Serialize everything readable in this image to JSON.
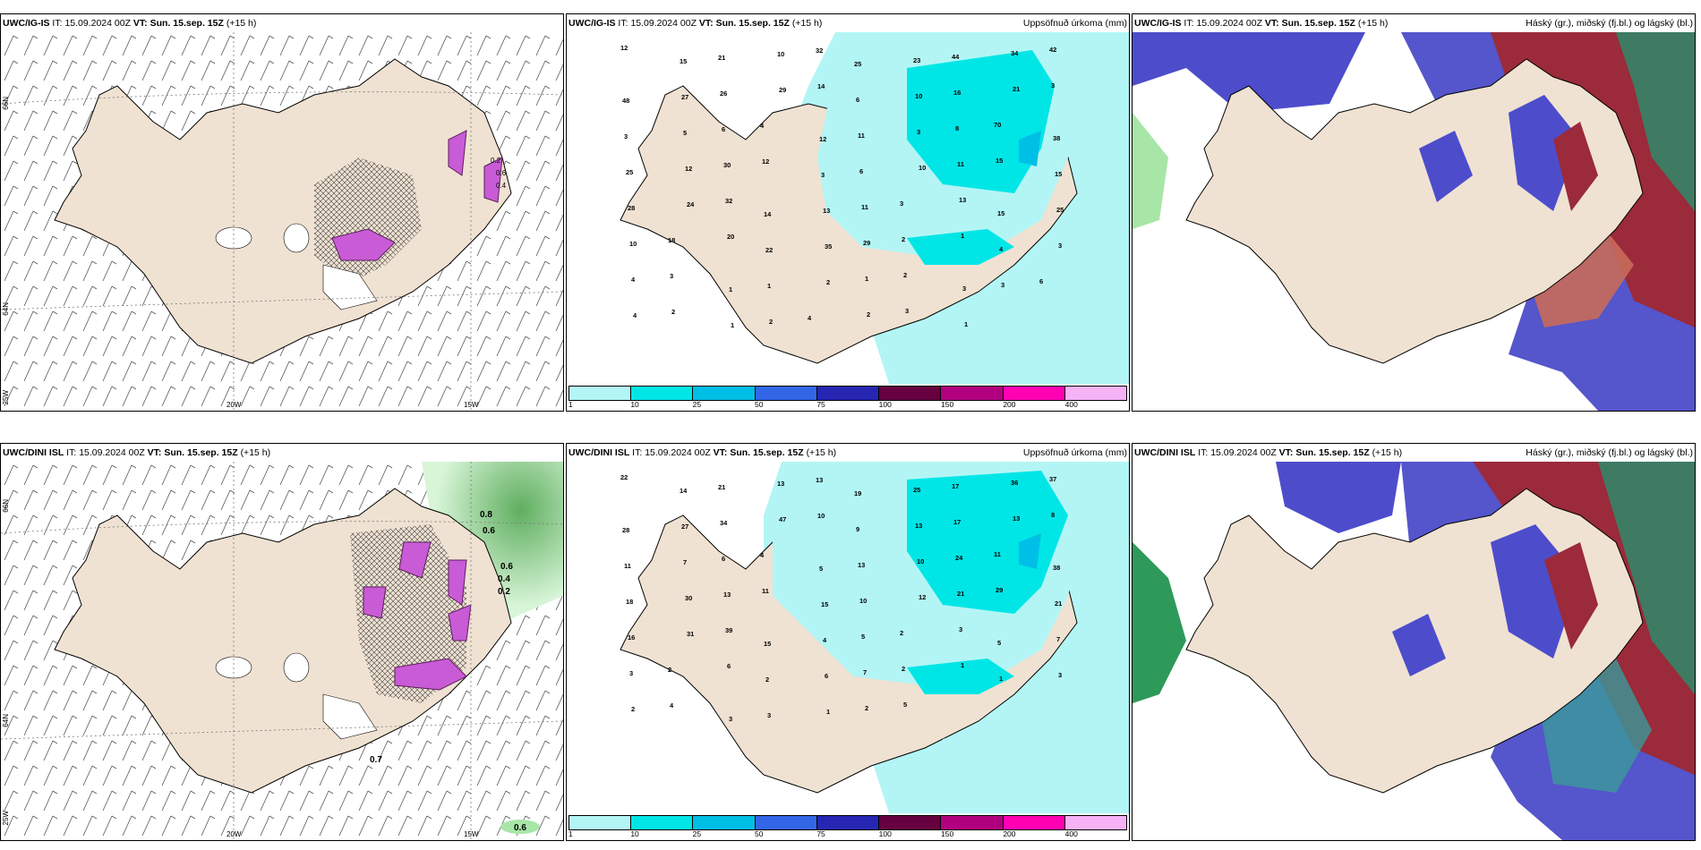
{
  "panels": [
    {
      "model": "UWC/IG-IS",
      "it_label": "IT:",
      "init": "15.09.2024 00Z",
      "vt_label": "VT:",
      "valid": "Sun. 15.sep. 15Z",
      "lead": "(+15 h)",
      "right": ""
    },
    {
      "model": "UWC/IG-IS",
      "it_label": "IT:",
      "init": "15.09.2024 00Z",
      "vt_label": "VT:",
      "valid": "Sun. 15.sep. 15Z",
      "lead": "(+15 h)",
      "right": "Uppsöfnuð úrkoma (mm)"
    },
    {
      "model": "UWC/IG-IS",
      "it_label": "IT:",
      "init": "15.09.2024 00Z",
      "vt_label": "VT:",
      "valid": "Sun. 15.sep. 15Z",
      "lead": "(+15 h)",
      "right": "Háský (gr.), miðský (fj.bl.) og lágský (bl.)"
    },
    {
      "model": "UWC/DINI ISL",
      "it_label": "IT:",
      "init": "15.09.2024 00Z",
      "vt_label": "VT:",
      "valid": "Sun. 15.sep. 15Z",
      "lead": "(+15 h)",
      "right": ""
    },
    {
      "model": "UWC/DINI ISL",
      "it_label": "IT:",
      "init": "15.09.2024 00Z",
      "vt_label": "VT:",
      "valid": "Sun. 15.sep. 15Z",
      "lead": "(+15 h)",
      "right": "Uppsöfnuð úrkoma (mm)"
    },
    {
      "model": "UWC/DINI ISL",
      "it_label": "IT:",
      "init": "15.09.2024 00Z",
      "vt_label": "VT:",
      "valid": "Sun. 15.sep. 15Z",
      "lead": "(+15 h)",
      "right": "Háský (gr.), miðský (fj.bl.) og lágský (bl.)"
    }
  ],
  "axes": {
    "lat66": "66N",
    "lat64": "64N",
    "lon20": "20W",
    "lon15": "15W",
    "lon25": "25W"
  },
  "legend": {
    "labels": [
      "1",
      "10",
      "25",
      "50",
      "75",
      "100",
      "150",
      "200",
      "400"
    ],
    "colors": [
      "#b3f5f5",
      "#00e6e6",
      "#00bfe6",
      "#3366e6",
      "#2626b3",
      "#660040",
      "#b30080",
      "#ff00b3",
      "#f5b3f5"
    ]
  },
  "precip_ig": [
    "12",
    "15",
    "21",
    "10",
    "32",
    "25",
    "23",
    "44",
    "34",
    "42",
    "48",
    "27",
    "26",
    "29",
    "14",
    "6",
    "10",
    "16",
    "21",
    "3",
    "3",
    "5",
    "6",
    "4",
    "12",
    "11",
    "3",
    "8",
    "70",
    "38",
    "25",
    "12",
    "30",
    "12",
    "3",
    "6",
    "10",
    "11",
    "15",
    "15",
    "28",
    "24",
    "32",
    "14",
    "13",
    "11",
    "3",
    "13",
    "15",
    "25",
    "10",
    "18",
    "20",
    "22",
    "35",
    "29",
    "2",
    "1",
    "4",
    "3",
    "4",
    "3",
    "1",
    "1",
    "2",
    "1",
    "2",
    "3",
    "3",
    "6",
    "4",
    "2",
    "1",
    "2",
    "4",
    "2",
    "3",
    "1"
  ],
  "precip_dini": [
    "22",
    "14",
    "21",
    "13",
    "13",
    "19",
    "25",
    "17",
    "36",
    "37",
    "28",
    "27",
    "34",
    "47",
    "10",
    "9",
    "13",
    "17",
    "13",
    "8",
    "11",
    "7",
    "6",
    "4",
    "5",
    "13",
    "10",
    "24",
    "11",
    "38",
    "18",
    "30",
    "13",
    "11",
    "15",
    "10",
    "12",
    "21",
    "29",
    "21",
    "16",
    "31",
    "39",
    "15",
    "4",
    "5",
    "2",
    "3",
    "5",
    "7",
    "3",
    "2",
    "6",
    "2",
    "6",
    "7",
    "2",
    "1",
    "1",
    "3",
    "2",
    "4",
    "3",
    "3",
    "1",
    "2",
    "5"
  ],
  "spec_ig": [
    "0.2",
    "0.6",
    "0.4"
  ],
  "spec_dini": [
    "0.8",
    "0.6",
    "0.6",
    "0.4",
    "0.2",
    "0.7",
    "0.6"
  ]
}
